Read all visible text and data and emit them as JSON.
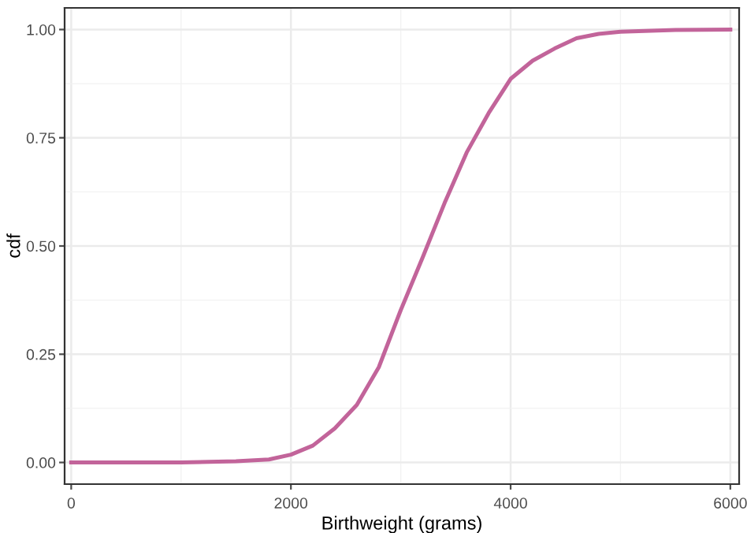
{
  "chart_data": {
    "type": "line",
    "xlabel": "Birthweight (grams)",
    "ylabel": "cdf",
    "x": [
      0,
      500,
      1000,
      1500,
      1800,
      2000,
      2200,
      2400,
      2600,
      2800,
      3000,
      3200,
      3400,
      3600,
      3800,
      4000,
      4200,
      4400,
      4600,
      4800,
      5000,
      5500,
      6000
    ],
    "series": [
      {
        "color": "#c2649a",
        "values": [
          0,
          0,
          0,
          0.003,
          0.007,
          0.018,
          0.039,
          0.079,
          0.133,
          0.22,
          0.352,
          0.474,
          0.6,
          0.716,
          0.807,
          0.886,
          0.928,
          0.956,
          0.98,
          0.99,
          0.995,
          0.999,
          1.0
        ]
      }
    ],
    "xlim": [
      -60,
      6080
    ],
    "ylim": [
      -0.05,
      1.05
    ],
    "xticks": [
      0,
      2000,
      4000,
      6000
    ],
    "yticks": [
      {
        "value": 0,
        "label": "0.00"
      },
      {
        "value": 0.25,
        "label": "0.25"
      },
      {
        "value": 0.5,
        "label": "0.50"
      },
      {
        "value": 0.75,
        "label": "0.75"
      },
      {
        "value": 1,
        "label": "1.00"
      }
    ],
    "grid": true,
    "marker": "none",
    "line_style": "solid"
  }
}
